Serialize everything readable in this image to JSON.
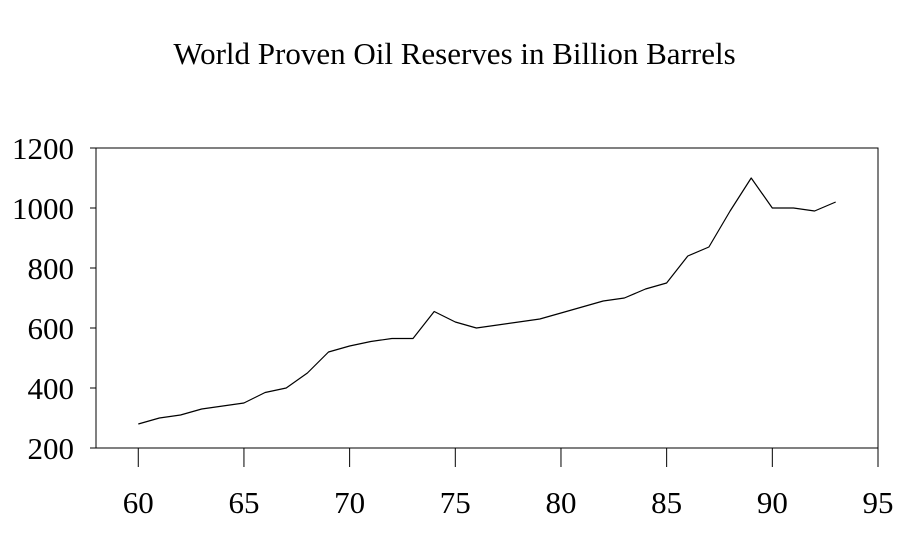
{
  "chart_data": {
    "type": "line",
    "title": "World Proven Oil Reserves in Billion Barrels",
    "xlabel": "",
    "ylabel": "",
    "xlim": [
      58,
      95
    ],
    "ylim": [
      200,
      1200
    ],
    "x_ticks": [
      60,
      65,
      70,
      75,
      80,
      85,
      90,
      95
    ],
    "y_ticks": [
      200,
      400,
      600,
      800,
      1000,
      1200
    ],
    "grid": false,
    "legend": "none",
    "series": [
      {
        "x": [
          60,
          61,
          62,
          63,
          64,
          65,
          66,
          67,
          68,
          69,
          70,
          71,
          72,
          73,
          74,
          75,
          76,
          77,
          78,
          79,
          80,
          81,
          82,
          83,
          84,
          85,
          86,
          87,
          88,
          89,
          90,
          91,
          92,
          93
        ],
        "y": [
          280,
          300,
          310,
          330,
          340,
          350,
          385,
          400,
          450,
          520,
          540,
          555,
          565,
          565,
          655,
          620,
          600,
          610,
          620,
          630,
          650,
          670,
          690,
          700,
          730,
          750,
          840,
          870,
          990,
          1100,
          1000,
          1000,
          990,
          1020
        ],
        "color": "#000000"
      }
    ]
  }
}
